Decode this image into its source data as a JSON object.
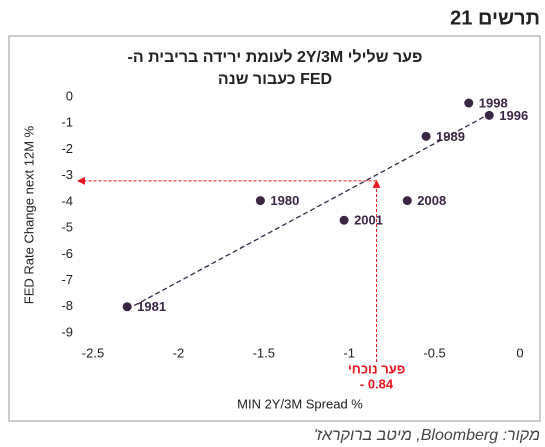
{
  "header": "תרשים 21",
  "source": "מקור: Bloomberg, מיטב ברוקראז'",
  "chart_data": {
    "type": "scatter",
    "title": [
      "פער שלילי 2Y/3M לעומת ירידה בריבית ה-",
      "FED כעבור שנה"
    ],
    "x_label": "MIN 2Y/3M Spread %",
    "y_label": "FED Rate Change next 12M %",
    "x": [
      -0.3,
      -0.18,
      -0.55,
      -1.52,
      -1.03,
      -0.66,
      -2.3
    ],
    "values": [
      -0.23,
      -0.7,
      -1.5,
      -3.95,
      -4.7,
      -3.95,
      -8.0
    ],
    "point_labels": [
      "1998",
      "1996",
      "1989",
      "1980",
      "2001",
      "2008",
      "1981"
    ],
    "color": "#3b2545",
    "xlim": [
      -2.5,
      0
    ],
    "ylim": [
      -9,
      0
    ],
    "xticks": [
      -2.5,
      -2,
      -1.5,
      -1,
      -0.5,
      0
    ],
    "yticks": [
      0,
      -1,
      -2,
      -3,
      -4,
      -5,
      -6,
      -7,
      -8,
      -9
    ],
    "trendline": {
      "x": [
        -2.3,
        -0.18
      ],
      "y": [
        -8.1,
        -0.65
      ],
      "color": "#3b2545"
    },
    "annotation": {
      "text": "פער נוכחי",
      "value": -0.84,
      "value_label": "- 0.84",
      "y": -3.2,
      "color": "#e8131b"
    }
  }
}
